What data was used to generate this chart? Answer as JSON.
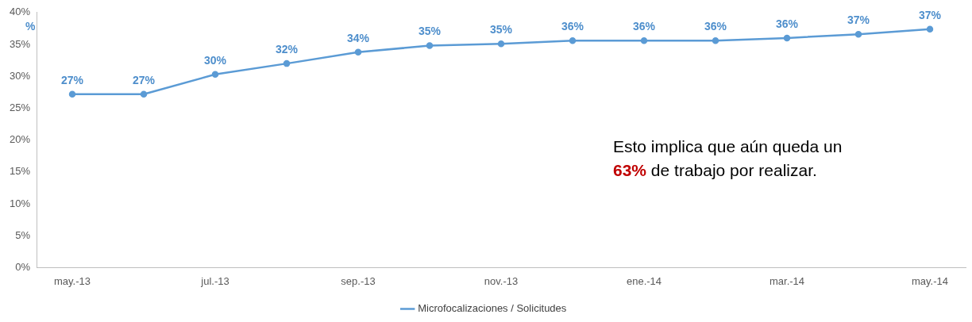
{
  "chart_data": {
    "type": "line",
    "ylabel": "%",
    "categories": [
      "may.-13",
      null,
      "jul.-13",
      null,
      "sep.-13",
      null,
      "nov.-13",
      null,
      "ene.-14",
      null,
      "mar.-14",
      null,
      "may.-14"
    ],
    "series": [
      {
        "name": "Microfocalizaciones / Solicitudes",
        "color": "#5b9bd5",
        "values": [
          27.2,
          27.2,
          30.3,
          32,
          33.8,
          34.8,
          35.1,
          35.6,
          35.6,
          35.6,
          36,
          36.6,
          37.4
        ],
        "value_labels": [
          "27%",
          "27%",
          "30%",
          "32%",
          "34%",
          "35%",
          "35%",
          "36%",
          "36%",
          "36%",
          "36%",
          "37%",
          "37%"
        ]
      }
    ],
    "ylim": [
      0,
      40
    ],
    "yticks": [
      {
        "value": 0,
        "label": "0%"
      },
      {
        "value": 5,
        "label": "5%"
      },
      {
        "value": 10,
        "label": "10%"
      },
      {
        "value": 15,
        "label": "15%"
      },
      {
        "value": 20,
        "label": "20%"
      },
      {
        "value": 25,
        "label": "25%"
      },
      {
        "value": 30,
        "label": "30%"
      },
      {
        "value": 35,
        "label": "35%"
      },
      {
        "value": 40,
        "label": "40%"
      }
    ],
    "grid": false,
    "legend": "bottom",
    "marker": "circle",
    "line_style": "solid",
    "annotations": [
      "Esto implica que aún queda un 63% de trabajo por realizar."
    ]
  }
}
